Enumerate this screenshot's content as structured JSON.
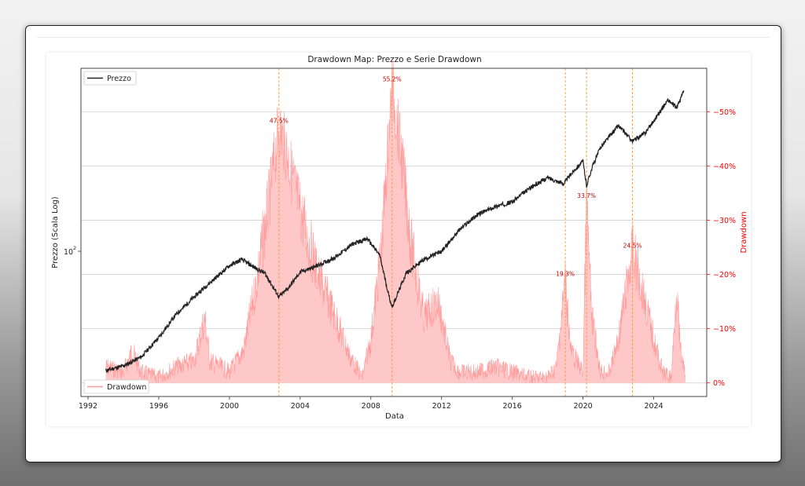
{
  "chart_data": {
    "type": "line",
    "title": "Drawdown Map: Prezzo e Serie Drawdown",
    "xlabel": "Data",
    "ylabel_left": "Prezzo (Scala Log)",
    "ylabel_right": "Drawdown",
    "x_ticks": [
      "1992",
      "1996",
      "2000",
      "2004",
      "2008",
      "2012",
      "2016",
      "2020",
      "2024"
    ],
    "y_left_tick_label": "10",
    "y_left_tick_sup": "2",
    "y_right_ticks": [
      "0%",
      "−10%",
      "−20%",
      "−30%",
      "−40%",
      "−50%"
    ],
    "y_right_values": [
      0,
      -10,
      -20,
      -30,
      -40,
      -50
    ],
    "xlim": [
      1991.6,
      2027.0
    ],
    "right_ylim": [
      2.5,
      -58
    ],
    "grid": "horizontal",
    "legend_price": {
      "label": "Prezzo",
      "position": "top-left"
    },
    "legend_drawdown": {
      "label": "Drawdown",
      "position": "bottom-left"
    },
    "colors": {
      "price": "#222222",
      "drawdown_fill": "#ffc8c8",
      "drawdown_line": "#ff8a8a",
      "annotation": "#c00000",
      "right_axis": "#ff0000",
      "vline": "#ff9a30"
    },
    "series": [
      {
        "name": "Prezzo",
        "x": [
          1993.0,
          1994.0,
          1995.0,
          1996.0,
          1997.0,
          1998.5,
          1999.0,
          2000.0,
          2000.7,
          2001.5,
          2002.0,
          2002.8,
          2003.3,
          2004.0,
          2005.0,
          2006.0,
          2007.0,
          2007.8,
          2008.5,
          2009.0,
          2009.2,
          2010.0,
          2011.0,
          2012.0,
          2013.0,
          2014.0,
          2015.0,
          2016.0,
          2017.0,
          2018.0,
          2018.9,
          2019.5,
          2020.0,
          2020.2,
          2020.5,
          2021.0,
          2022.0,
          2022.8,
          2023.5,
          2024.0,
          2024.8,
          2025.3,
          2025.7
        ],
        "y": [
          44,
          46,
          50,
          60,
          75,
          95,
          102,
          118,
          125,
          115,
          110,
          88,
          95,
          111,
          118,
          128,
          145,
          152,
          130,
          90,
          80,
          110,
          125,
          135,
          165,
          190,
          205,
          215,
          245,
          270,
          255,
          290,
          315,
          250,
          295,
          360,
          440,
          380,
          410,
          460,
          560,
          520,
          610
        ]
      },
      {
        "name": "Drawdown",
        "x": [
          1993.0,
          1994.0,
          1994.5,
          1995.0,
          1996.0,
          1997.0,
          1998.0,
          1998.6,
          1998.9,
          1999.5,
          2000.0,
          2000.8,
          2001.5,
          2002.3,
          2002.8,
          2003.2,
          2004.0,
          2005.0,
          2006.0,
          2006.8,
          2007.5,
          2008.0,
          2008.6,
          2009.2,
          2009.8,
          2010.3,
          2011.0,
          2011.8,
          2012.5,
          2013.0,
          2014.0,
          2015.0,
          2016.0,
          2017.0,
          2018.0,
          2018.5,
          2019.0,
          2019.3,
          2020.0,
          2020.2,
          2020.5,
          2021.0,
          2021.5,
          2022.0,
          2022.8,
          2023.3,
          2024.0,
          2024.5,
          2025.0,
          2025.3,
          2025.5,
          2025.8
        ],
        "y": [
          -3,
          -2,
          -6,
          -2,
          -1,
          -3,
          -4,
          -12,
          -4,
          -3,
          -2,
          -6,
          -18,
          -35,
          -47.5,
          -43,
          -32,
          -20,
          -12,
          -5,
          -1,
          -8,
          -25,
          -55.2,
          -40,
          -25,
          -12,
          -15,
          -4,
          -2,
          -2,
          -3,
          -2,
          -1,
          -1,
          -3,
          -19.3,
          -6,
          -2,
          -33.7,
          -12,
          -2,
          -2,
          -8,
          -24.5,
          -18,
          -8,
          -2,
          -1,
          -18,
          -6,
          -1
        ]
      }
    ],
    "annotations": [
      {
        "x": 2002.8,
        "label": "47.5%"
      },
      {
        "x": 2009.2,
        "label": "55.2%"
      },
      {
        "x": 2019.0,
        "label": "19.3%"
      },
      {
        "x": 2020.2,
        "label": "33.7%"
      },
      {
        "x": 2022.8,
        "label": "24.5%"
      }
    ]
  }
}
